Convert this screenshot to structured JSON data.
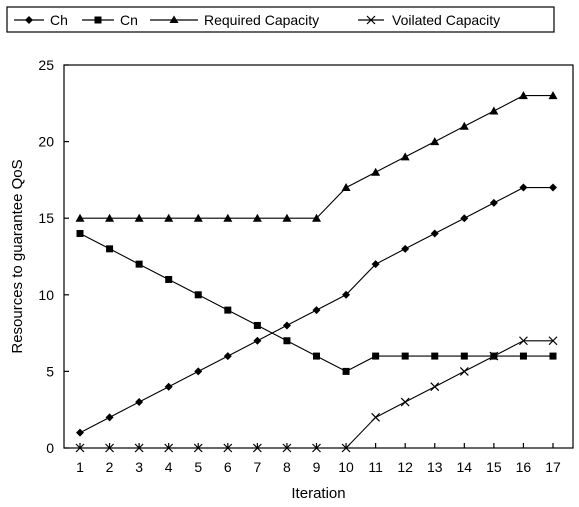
{
  "chart_data": {
    "type": "line",
    "title": "",
    "xlabel": "Iteration",
    "ylabel": "Resources to guarantee QoS",
    "categories": [
      "1",
      "2",
      "3",
      "4",
      "5",
      "6",
      "7",
      "8",
      "9",
      "10",
      "11",
      "12",
      "13",
      "14",
      "15",
      "16",
      "17"
    ],
    "ylim": [
      0,
      25
    ],
    "yticks": [
      "0",
      "5",
      "10",
      "15",
      "20",
      "25"
    ],
    "grid": false,
    "legend": "top",
    "series": [
      {
        "name": "Ch",
        "marker": "diamond",
        "color": "#000000",
        "values": [
          1,
          2,
          3,
          4,
          5,
          6,
          7,
          8,
          9,
          10,
          12,
          13,
          14,
          15,
          16,
          17,
          17
        ]
      },
      {
        "name": "Cn",
        "marker": "square",
        "color": "#000000",
        "values": [
          14,
          13,
          12,
          11,
          10,
          9,
          8,
          7,
          6,
          5,
          6,
          6,
          6,
          6,
          6,
          6,
          6
        ]
      },
      {
        "name": "Required Capacity",
        "marker": "triangle",
        "color": "#000000",
        "values": [
          15,
          15,
          15,
          15,
          15,
          15,
          15,
          15,
          15,
          17,
          18,
          19,
          20,
          21,
          22,
          23,
          23
        ]
      },
      {
        "name": "Voilated Capacity",
        "marker": "x",
        "color": "#000000",
        "values": [
          0,
          0,
          0,
          0,
          0,
          0,
          0,
          0,
          0,
          0,
          2,
          3,
          4,
          5,
          6,
          7,
          7
        ]
      }
    ]
  }
}
